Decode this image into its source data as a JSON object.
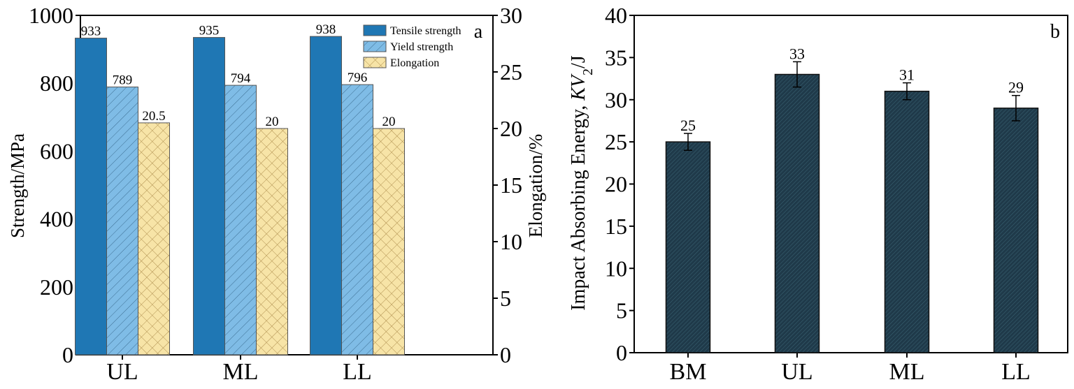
{
  "chart_data": [
    {
      "type": "bar",
      "panel_label": "a",
      "categories": [
        "UL",
        "ML",
        "LL"
      ],
      "ylabel": "Strength/MPa",
      "y2label": "Elongation/%",
      "ylim": [
        0,
        1000
      ],
      "y2lim": [
        0,
        30
      ],
      "yticks": [
        "0",
        "200",
        "400",
        "600",
        "800",
        "1000"
      ],
      "y2ticks": [
        "0",
        "5",
        "10",
        "15",
        "20",
        "25",
        "30"
      ],
      "legend_position": "top-right",
      "series": [
        {
          "name": "Tensile strength",
          "axis": "left",
          "values": [
            933,
            935,
            938
          ],
          "labels": [
            "933",
            "935",
            "938"
          ],
          "color": "#1f77b4",
          "pattern": "solid"
        },
        {
          "name": "Yield strength",
          "axis": "left",
          "values": [
            789,
            794,
            796
          ],
          "labels": [
            "789",
            "794",
            "796"
          ],
          "color": "#7fbce6",
          "pattern": "diagonal"
        },
        {
          "name": "Elongation",
          "axis": "right",
          "values": [
            20.5,
            20,
            20
          ],
          "labels": [
            "20.5",
            "20",
            "20"
          ],
          "color": "#f7e4a7",
          "pattern": "crosshatch"
        }
      ]
    },
    {
      "type": "bar",
      "panel_label": "b",
      "categories": [
        "BM",
        "UL",
        "ML",
        "LL"
      ],
      "ylabel_parts": {
        "prefix": "Impact Absorbing Energy, ",
        "italic": "KV",
        "sub": "2",
        "suffix": "/J"
      },
      "ylim": [
        0,
        40
      ],
      "yticks": [
        "0",
        "5",
        "10",
        "15",
        "20",
        "25",
        "30",
        "35",
        "40"
      ],
      "values": [
        25,
        33,
        31,
        29
      ],
      "labels": [
        "25",
        "33",
        "31",
        "29"
      ],
      "errors": [
        1.0,
        1.5,
        1.0,
        1.5
      ],
      "color": "#1f3a4a"
    }
  ]
}
